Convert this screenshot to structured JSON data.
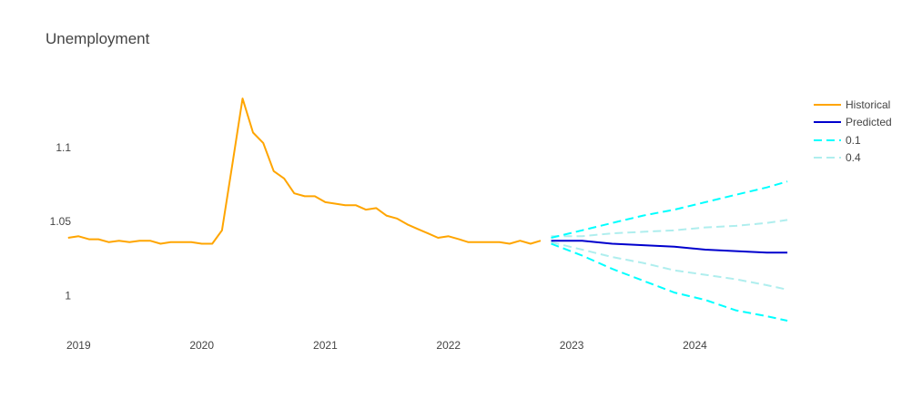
{
  "title": "Unemployment",
  "chart_data": {
    "type": "line",
    "title": "Unemployment",
    "xlabel": "",
    "ylabel": "",
    "xlim": [
      "2018-12-15",
      "2024-10-25"
    ],
    "ylim": [
      0.975,
      1.138
    ],
    "x_ticks": [
      "2019",
      "2020",
      "2021",
      "2022",
      "2023",
      "2024"
    ],
    "y_ticks": [
      "1",
      "1.05",
      "1.1"
    ],
    "legend_position": "top-right",
    "grid": false,
    "series": [
      {
        "name": "Historical",
        "color": "#FFA500",
        "dash": "solid",
        "x": [
          "2018-12-01",
          "2019-01-01",
          "2019-02-01",
          "2019-03-01",
          "2019-04-01",
          "2019-05-01",
          "2019-06-01",
          "2019-07-01",
          "2019-08-01",
          "2019-09-01",
          "2019-10-01",
          "2019-11-01",
          "2019-12-01",
          "2020-01-01",
          "2020-02-01",
          "2020-03-01",
          "2020-04-01",
          "2020-05-01",
          "2020-06-01",
          "2020-07-01",
          "2020-08-01",
          "2020-09-01",
          "2020-10-01",
          "2020-11-01",
          "2020-12-01",
          "2021-01-01",
          "2021-02-01",
          "2021-03-01",
          "2021-04-01",
          "2021-05-01",
          "2021-06-01",
          "2021-07-01",
          "2021-08-01",
          "2021-09-01",
          "2021-10-01",
          "2021-11-01",
          "2021-12-01",
          "2022-01-01",
          "2022-02-01",
          "2022-03-01",
          "2022-04-01",
          "2022-05-01",
          "2022-06-01",
          "2022-07-01",
          "2022-08-01",
          "2022-09-01",
          "2022-10-01"
        ],
        "y": [
          1.039,
          1.04,
          1.038,
          1.038,
          1.036,
          1.037,
          1.036,
          1.037,
          1.037,
          1.035,
          1.036,
          1.036,
          1.036,
          1.035,
          1.035,
          1.044,
          1.089,
          1.133,
          1.11,
          1.103,
          1.084,
          1.079,
          1.069,
          1.067,
          1.067,
          1.063,
          1.062,
          1.061,
          1.061,
          1.058,
          1.059,
          1.054,
          1.052,
          1.048,
          1.045,
          1.042,
          1.039,
          1.04,
          1.038,
          1.036,
          1.036,
          1.036,
          1.036,
          1.035,
          1.037,
          1.035,
          1.037
        ]
      },
      {
        "name": "Predicted",
        "color": "#0000CD",
        "dash": "solid",
        "x": [
          "2022-11-01",
          "2023-02-01",
          "2023-05-01",
          "2023-08-01",
          "2023-11-01",
          "2024-02-01",
          "2024-05-01",
          "2024-08-01",
          "2024-10-01"
        ],
        "y": [
          1.037,
          1.037,
          1.035,
          1.034,
          1.033,
          1.031,
          1.03,
          1.029,
          1.029
        ]
      },
      {
        "name": "0.1",
        "color": "#00FFFF",
        "dash": "dash",
        "band": [
          {
            "x": [
              "2022-11-01",
              "2023-02-01",
              "2023-05-01",
              "2023-08-01",
              "2023-11-01",
              "2024-02-01",
              "2024-05-01",
              "2024-08-01",
              "2024-10-01"
            ],
            "y": [
              1.039,
              1.044,
              1.049,
              1.054,
              1.058,
              1.063,
              1.068,
              1.073,
              1.077
            ]
          },
          {
            "x": [
              "2022-11-01",
              "2023-02-01",
              "2023-05-01",
              "2023-08-01",
              "2023-11-01",
              "2024-02-01",
              "2024-05-01",
              "2024-08-01",
              "2024-10-01"
            ],
            "y": [
              1.035,
              1.027,
              1.018,
              1.01,
              1.002,
              0.997,
              0.99,
              0.986,
              0.983
            ]
          }
        ]
      },
      {
        "name": "0.4",
        "color": "#AFEEEE",
        "dash": "dash",
        "band": [
          {
            "x": [
              "2022-11-01",
              "2023-02-01",
              "2023-05-01",
              "2023-08-01",
              "2023-11-01",
              "2024-02-01",
              "2024-05-01",
              "2024-08-01",
              "2024-10-01"
            ],
            "y": [
              1.04,
              1.04,
              1.042,
              1.043,
              1.044,
              1.046,
              1.047,
              1.049,
              1.051
            ]
          },
          {
            "x": [
              "2022-11-01",
              "2023-02-01",
              "2023-05-01",
              "2023-08-01",
              "2023-11-01",
              "2024-02-01",
              "2024-05-01",
              "2024-08-01",
              "2024-10-01"
            ],
            "y": [
              1.036,
              1.031,
              1.026,
              1.022,
              1.017,
              1.014,
              1.011,
              1.007,
              1.004
            ]
          }
        ]
      }
    ]
  }
}
